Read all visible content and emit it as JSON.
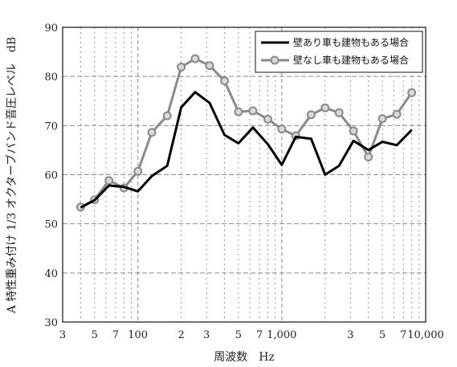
{
  "chart_data": {
    "type": "line",
    "xlabel": "周波数　Hz",
    "ylabel": "A 特性重み付け 1/3 オクターブバンド音圧レベル　dB",
    "x_scale": "log",
    "xlim": [
      30,
      10000
    ],
    "ylim": [
      30,
      90
    ],
    "x_tick_labels": [
      {
        "value": 30,
        "label": "3"
      },
      {
        "value": 50,
        "label": "5"
      },
      {
        "value": 70,
        "label": "7"
      },
      {
        "value": 100,
        "label": "100"
      },
      {
        "value": 200,
        "label": "2"
      },
      {
        "value": 300,
        "label": "3"
      },
      {
        "value": 500,
        "label": "5"
      },
      {
        "value": 700,
        "label": "7"
      },
      {
        "value": 1000,
        "label": "1,000"
      },
      {
        "value": 3000,
        "label": "3"
      },
      {
        "value": 5000,
        "label": "5"
      },
      {
        "value": 7000,
        "label": "7"
      },
      {
        "value": 10000,
        "label": "10,000"
      }
    ],
    "y_ticks": [
      30,
      40,
      50,
      60,
      70,
      80,
      90
    ],
    "grid": true,
    "legend_position": "top-right",
    "x": [
      40,
      50,
      63,
      80,
      100,
      125,
      160,
      200,
      250,
      315,
      400,
      500,
      630,
      800,
      1000,
      1250,
      1600,
      2000,
      2500,
      3150,
      4000,
      5000,
      6300,
      8000
    ],
    "series": [
      {
        "name": "壁あり車も建物もある場合",
        "color": "#000000",
        "marker": "none",
        "values": [
          53.3,
          54.8,
          57.8,
          57.5,
          56.6,
          59.7,
          61.8,
          73.7,
          76.8,
          74.6,
          68.1,
          66.4,
          69.6,
          66.2,
          62.0,
          67.7,
          67.3,
          60.0,
          61.8,
          66.9,
          65.0,
          66.7,
          66.0,
          69.1
        ]
      },
      {
        "name": "壁なし車も建物もある場合",
        "color": "#8a8a8a",
        "marker": "circle",
        "values": [
          53.4,
          54.9,
          58.8,
          57.3,
          60.7,
          68.6,
          72.0,
          81.9,
          83.6,
          82.2,
          79.1,
          72.8,
          73.0,
          71.3,
          69.3,
          67.9,
          72.2,
          73.6,
          72.6,
          68.9,
          63.6,
          71.4,
          72.3,
          76.7
        ]
      }
    ]
  }
}
